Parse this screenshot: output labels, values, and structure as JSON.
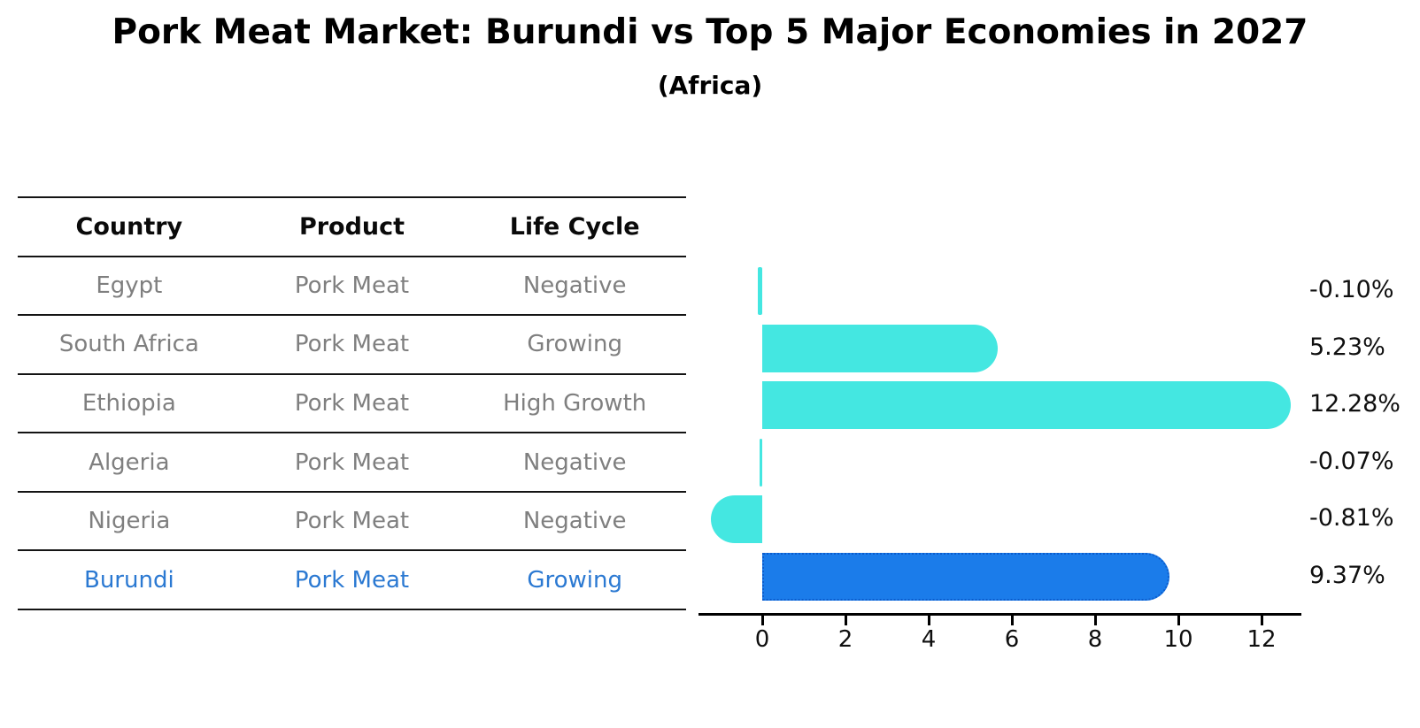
{
  "title": "Pork Meat Market: Burundi vs Top 5 Major Economies in 2027",
  "subtitle": "(Africa)",
  "table": {
    "headers": [
      "Country",
      "Product",
      "Life Cycle"
    ],
    "rows": [
      {
        "country": "Egypt",
        "product": "Pork Meat",
        "life_cycle": "Negative",
        "highlight": false
      },
      {
        "country": "South Africa",
        "product": "Pork Meat",
        "life_cycle": "Growing",
        "highlight": false
      },
      {
        "country": "Ethiopia",
        "product": "Pork Meat",
        "life_cycle": "High Growth",
        "highlight": false
      },
      {
        "country": "Algeria",
        "product": "Pork Meat",
        "life_cycle": "Negative",
        "highlight": false
      },
      {
        "country": "Nigeria",
        "product": "Pork Meat",
        "life_cycle": "Negative",
        "highlight": false
      },
      {
        "country": "Burundi",
        "product": "Pork Meat",
        "life_cycle": "Growing",
        "highlight": true
      }
    ]
  },
  "chart_data": {
    "type": "bar",
    "orientation": "horizontal",
    "title": "Pork Meat Market: Burundi vs Top 5 Major Economies in 2027",
    "subtitle": "(Africa)",
    "categories": [
      "Egypt",
      "South Africa",
      "Ethiopia",
      "Algeria",
      "Nigeria",
      "Burundi"
    ],
    "values": [
      -0.1,
      5.23,
      12.28,
      -0.07,
      -0.81,
      9.37
    ],
    "value_labels": [
      "-0.10%",
      "5.23%",
      "12.28%",
      "-0.07%",
      "-0.81%",
      "9.37%"
    ],
    "highlight_category": "Burundi",
    "x_ticks": [
      0,
      2,
      4,
      6,
      8,
      10,
      12
    ],
    "xlim": [
      -1.5,
      12.9
    ],
    "xlabel": "",
    "ylabel": "",
    "grid": false,
    "legend": "none",
    "unit": "%"
  },
  "colors": {
    "bar_default": "#44e7e1",
    "bar_highlight": "#1b7cea",
    "bar_highlight_edge": "#0c5ccc",
    "highlight_text": "#2b79d2",
    "cell_text": "#7f7f7f",
    "header_text": "#0a0a0a",
    "axis": "#000000",
    "value_label": "#0f0f0f",
    "background": "#ffffff"
  }
}
